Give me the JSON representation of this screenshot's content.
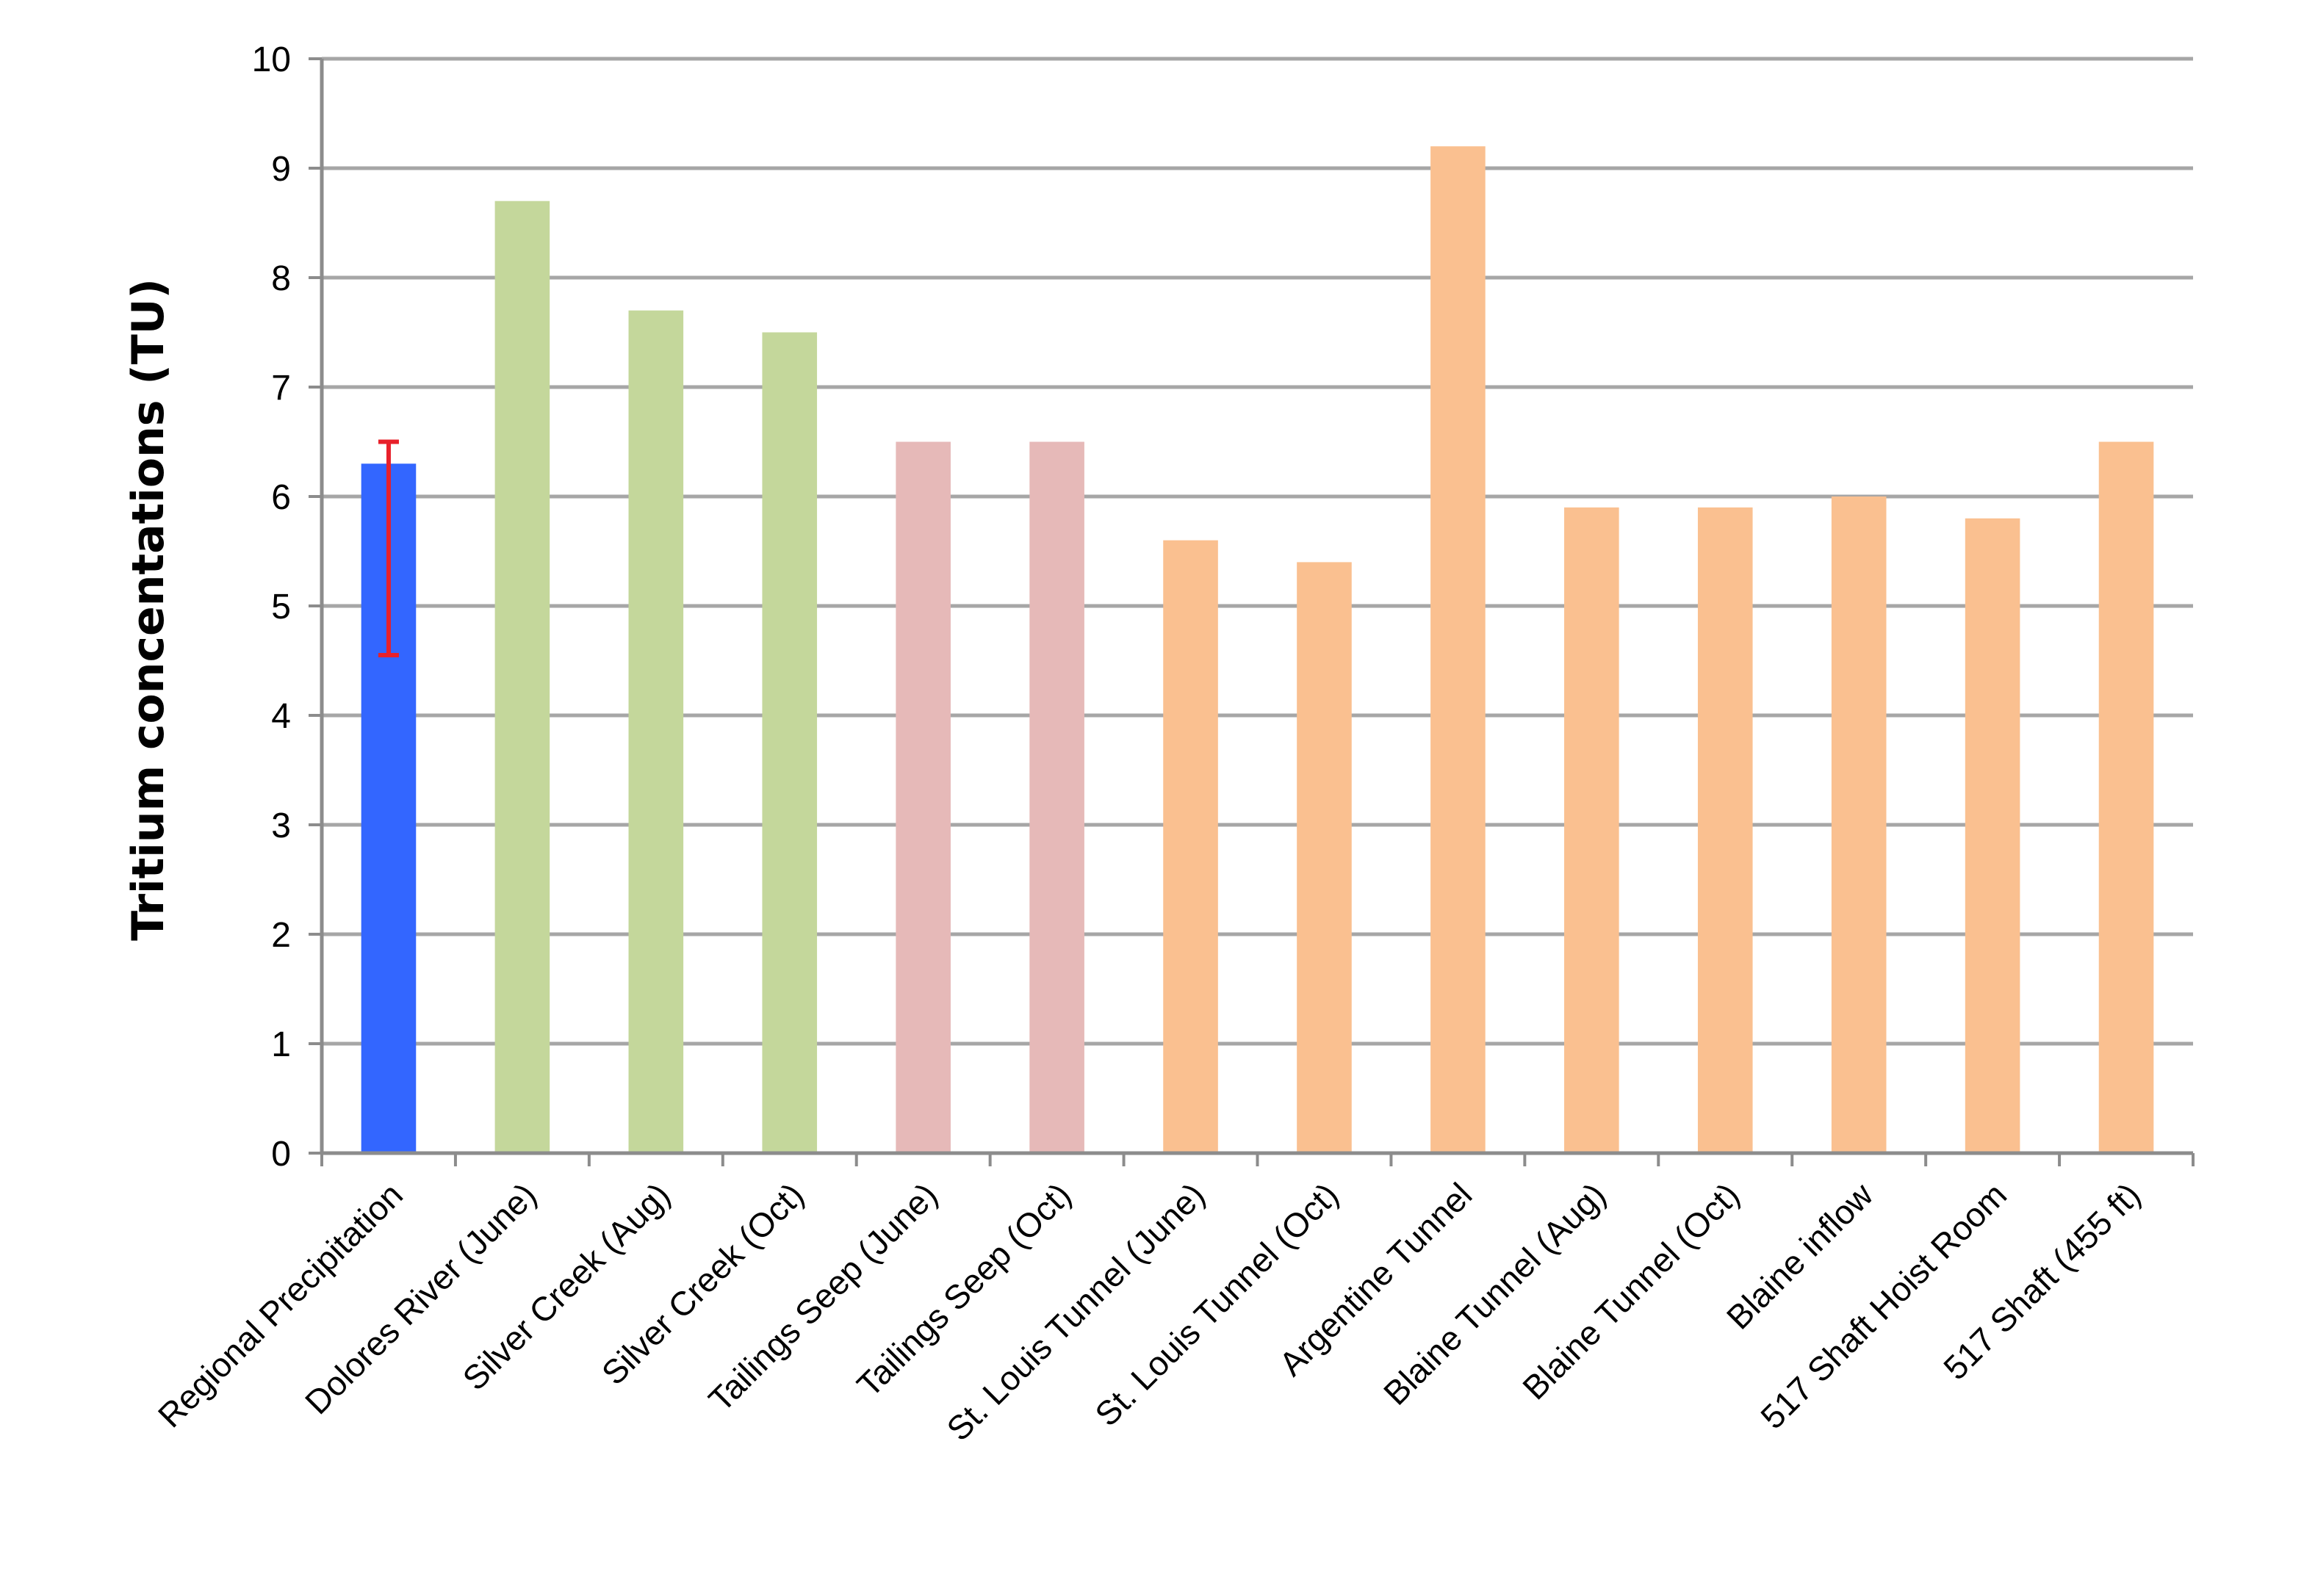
{
  "chart_data": {
    "type": "bar",
    "title": "",
    "xlabel": "",
    "ylabel": "Tritium concentations  (TU)",
    "ylim": [
      0,
      10
    ],
    "yticks": [
      0,
      1,
      2,
      3,
      4,
      5,
      6,
      7,
      8,
      9,
      10
    ],
    "grid": true,
    "legend": "none",
    "categories": [
      "Regional Precipitation",
      "Dolores River (June)",
      "Silver Creek (Aug)",
      "Silver Creek (Oct)",
      "Tailings Seep (June)",
      "Tailings Seep (Oct)",
      "St. Louis Tunnel (June)",
      "St. Louis Tunnel (Oct)",
      "Argentine Tunnel",
      "Blaine Tunnel (Aug)",
      "Blaine Tunnel (Oct)",
      "Blaine inflow",
      "517 Shaft Hoist Room",
      "517 Shaft (455 ft)"
    ],
    "values": [
      6.3,
      8.7,
      7.7,
      7.5,
      6.5,
      6.5,
      5.6,
      5.4,
      9.2,
      5.9,
      5.9,
      6.0,
      5.8,
      6.5
    ],
    "colors": [
      "#3366ff",
      "#c4d79b",
      "#c4d79b",
      "#c4d79b",
      "#e6b9b8",
      "#e6b9b8",
      "#fac090",
      "#fac090",
      "#fac090",
      "#fac090",
      "#fac090",
      "#fac090",
      "#fac090",
      "#fac090"
    ],
    "error_bars": [
      {
        "category": "Regional Precipitation",
        "low": 4.55,
        "high": 6.5,
        "color": "#e8202a"
      }
    ]
  }
}
